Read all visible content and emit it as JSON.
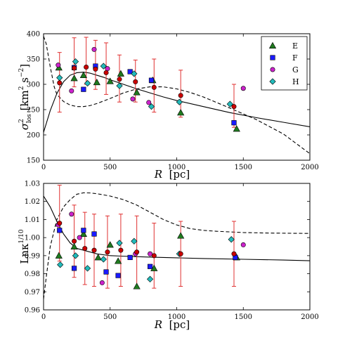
{
  "chart_data": [
    {
      "type": "scatter",
      "ylabel": "σ²_los [km² s⁻²]",
      "ylabel_parts": {
        "sym": "σ",
        "sup": "2",
        "sub": "los",
        "unit": " [km",
        "unit_sup": "2",
        "unit_mid": " s",
        "unit_sup2": "−2",
        "unit_end": "]"
      },
      "xlabel": "",
      "xlim": [
        0,
        2000
      ],
      "ylim": [
        150,
        400
      ],
      "xticks": [
        "0",
        "500",
        "1000",
        "1500",
        "2000"
      ],
      "xtick_values": [
        0,
        500,
        1000,
        1500,
        2000
      ],
      "yticks": [
        "150",
        "200",
        "250",
        "300",
        "350",
        "400"
      ],
      "ytick_values": [
        150,
        200,
        250,
        300,
        350,
        400
      ],
      "legend": {
        "placement": "top-right",
        "entries": [
          {
            "name": "E",
            "marker": "triangle",
            "color": "#1f7a1f"
          },
          {
            "name": "F",
            "marker": "square",
            "color": "#1a1aff"
          },
          {
            "name": "G",
            "marker": "circle",
            "color": "#cc22cc"
          },
          {
            "name": "H",
            "marker": "diamond",
            "color": "#22bbbb"
          }
        ]
      },
      "series": [
        {
          "name": "E",
          "marker": "triangle",
          "color": "#1f7a1f",
          "points": [
            [
              115,
              333
            ],
            [
              230,
              312
            ],
            [
              300,
              318
            ],
            [
              400,
              304
            ],
            [
              500,
              306
            ],
            [
              580,
              321
            ],
            [
              700,
              284
            ],
            [
              820,
              308
            ],
            [
              1030,
              244
            ],
            [
              1450,
              212
            ]
          ]
        },
        {
          "name": "F",
          "marker": "square",
          "color": "#1a1aff",
          "points": [
            [
              230,
              333
            ],
            [
              300,
              290
            ],
            [
              390,
              336
            ],
            [
              650,
              325
            ],
            [
              810,
              308
            ],
            [
              1430,
              224
            ]
          ]
        },
        {
          "name": "G",
          "marker": "circle",
          "color": "#cc22cc",
          "points": [
            [
              110,
              338
            ],
            [
              210,
              287
            ],
            [
              380,
              369
            ],
            [
              480,
              331
            ],
            [
              670,
              271
            ],
            [
              790,
              264
            ],
            [
              1500,
              292
            ]
          ]
        },
        {
          "name": "H",
          "marker": "diamond",
          "color": "#22bbbb",
          "points": [
            [
              120,
              313
            ],
            [
              240,
              345
            ],
            [
              330,
              302
            ],
            [
              450,
              336
            ],
            [
              570,
              297
            ],
            [
              680,
              321
            ],
            [
              810,
              256
            ],
            [
              1020,
              265
            ],
            [
              1400,
              261
            ]
          ]
        },
        {
          "name": "",
          "marker": "circle",
          "color": "#cc0000",
          "role": "errorbar",
          "points": [
            [
              120,
              303
            ],
            [
              230,
              332
            ],
            [
              320,
              334
            ],
            [
              390,
              330
            ],
            [
              470,
              323
            ],
            [
              570,
              310
            ],
            [
              690,
              305
            ],
            [
              830,
              294
            ],
            [
              1030,
              278
            ],
            [
              1430,
              256
            ]
          ],
          "errors": [
            [
              245,
              363
            ],
            [
              295,
              392
            ],
            [
              300,
              393
            ],
            [
              290,
              387
            ],
            [
              280,
              382
            ],
            [
              265,
              358
            ],
            [
              265,
              348
            ],
            [
              245,
              350
            ],
            [
              235,
              328
            ],
            [
              215,
              300
            ]
          ]
        }
      ],
      "curves": [
        {
          "name": "",
          "style": "solid",
          "color": "#000000",
          "x": [
            0,
            50,
            100,
            150,
            200,
            250,
            300,
            350,
            400,
            450,
            500,
            600,
            700,
            800,
            900,
            1000,
            1200,
            1400,
            1600,
            1800,
            2000
          ],
          "y": [
            205,
            248,
            282,
            305,
            318,
            323,
            324,
            322,
            318,
            314,
            309,
            300,
            291,
            283,
            275,
            268,
            256,
            244,
            234,
            225,
            216
          ]
        },
        {
          "name": "",
          "style": "dashed",
          "color": "#000000",
          "x": [
            0,
            20,
            50,
            80,
            100,
            150,
            200,
            250,
            300,
            350,
            400,
            500,
            600,
            700,
            800,
            900,
            1000,
            1100,
            1200,
            1400,
            1600,
            1800,
            2000
          ],
          "y": [
            395,
            380,
            335,
            295,
            280,
            266,
            259,
            256,
            256,
            258,
            262,
            272,
            283,
            291,
            295,
            295,
            291,
            284,
            275,
            253,
            230,
            202,
            163
          ]
        }
      ]
    },
    {
      "type": "scatter",
      "ylabel": "Lnκ^(1/10)",
      "ylabel_parts": {
        "main": "Lnκ",
        "sup": "1/10"
      },
      "xlabel": "R [pc]",
      "xlabel_parts": {
        "sym": "R",
        "unit": "[pc]"
      },
      "xlim": [
        0,
        2000
      ],
      "ylim": [
        0.96,
        1.03
      ],
      "xticks": [
        "0",
        "500",
        "1000",
        "1500",
        "2000"
      ],
      "xtick_values": [
        0,
        500,
        1000,
        1500,
        2000
      ],
      "yticks": [
        "0.96",
        "0.97",
        "0.98",
        "0.99",
        "1.00",
        "1.01",
        "1.02",
        "1.03"
      ],
      "ytick_values": [
        0.96,
        0.97,
        0.98,
        0.99,
        1.0,
        1.01,
        1.02,
        1.03
      ],
      "series": [
        {
          "name": "E",
          "marker": "triangle",
          "color": "#1f7a1f",
          "points": [
            [
              115,
              0.99
            ],
            [
              230,
              0.995
            ],
            [
              300,
              1.002
            ],
            [
              410,
              0.989
            ],
            [
              500,
              0.996
            ],
            [
              560,
              0.987
            ],
            [
              700,
              0.973
            ],
            [
              830,
              0.983
            ],
            [
              1030,
              1.001
            ],
            [
              1450,
              0.989
            ]
          ]
        },
        {
          "name": "F",
          "marker": "square",
          "color": "#1a1aff",
          "points": [
            [
              120,
              1.004
            ],
            [
              230,
              0.983
            ],
            [
              300,
              1.004
            ],
            [
              380,
              1.002
            ],
            [
              470,
              0.981
            ],
            [
              560,
              0.979
            ],
            [
              650,
              0.989
            ],
            [
              800,
              0.984
            ],
            [
              1440,
              0.989
            ]
          ]
        },
        {
          "name": "G",
          "marker": "circle",
          "color": "#cc22cc",
          "points": [
            [
              110,
              1.007
            ],
            [
              210,
              1.013
            ],
            [
              270,
              1.0
            ],
            [
              440,
              0.975
            ],
            [
              690,
              0.991
            ],
            [
              800,
              0.991
            ],
            [
              1500,
              0.996
            ]
          ]
        },
        {
          "name": "H",
          "marker": "diamond",
          "color": "#22bbbb",
          "points": [
            [
              125,
              0.985
            ],
            [
              240,
              0.99
            ],
            [
              330,
              0.983
            ],
            [
              450,
              0.988
            ],
            [
              570,
              0.997
            ],
            [
              680,
              0.998
            ],
            [
              800,
              0.977
            ],
            [
              1020,
              0.991
            ],
            [
              1410,
              0.999
            ]
          ]
        },
        {
          "name": "",
          "marker": "circle",
          "color": "#cc0000",
          "role": "errorbar",
          "points": [
            [
              120,
              1.008
            ],
            [
              230,
              0.998
            ],
            [
              310,
              0.994
            ],
            [
              380,
              0.993
            ],
            [
              480,
              0.992
            ],
            [
              580,
              0.993
            ],
            [
              700,
              0.992
            ],
            [
              830,
              0.99
            ],
            [
              1030,
              0.991
            ],
            [
              1430,
              0.991
            ]
          ],
          "errors": [
            [
              0.987,
              1.029
            ],
            [
              0.978,
              1.018
            ],
            [
              0.974,
              1.014
            ],
            [
              0.973,
              1.013
            ],
            [
              0.972,
              1.012
            ],
            [
              0.973,
              1.013
            ],
            [
              0.972,
              1.012
            ],
            [
              0.972,
              1.008
            ],
            [
              0.973,
              1.009
            ],
            [
              0.973,
              1.009
            ]
          ]
        }
      ],
      "curves": [
        {
          "name": "",
          "style": "solid",
          "color": "#000000",
          "x": [
            0,
            50,
            100,
            150,
            200,
            250,
            300,
            400,
            500,
            600,
            800,
            1000,
            1200,
            1500,
            1800,
            2000
          ],
          "y": [
            1.023,
            1.017,
            1.009,
            1.002,
            0.997,
            0.994,
            0.993,
            0.991,
            0.99,
            0.9897,
            0.9892,
            0.9888,
            0.9884,
            0.988,
            0.9876,
            0.9872
          ]
        },
        {
          "name": "",
          "style": "dashed",
          "color": "#000000",
          "x": [
            0,
            20,
            50,
            100,
            150,
            200,
            250,
            300,
            350,
            400,
            500,
            600,
            700,
            800,
            900,
            1000,
            1100,
            1200,
            1300,
            1500,
            1700,
            2000
          ],
          "y": [
            0.966,
            0.978,
            0.995,
            1.01,
            1.017,
            1.021,
            1.024,
            1.0248,
            1.0247,
            1.0243,
            1.023,
            1.021,
            1.018,
            1.014,
            1.01,
            1.007,
            1.005,
            1.004,
            1.0035,
            1.0028,
            1.0025,
            1.0023
          ]
        }
      ]
    }
  ]
}
